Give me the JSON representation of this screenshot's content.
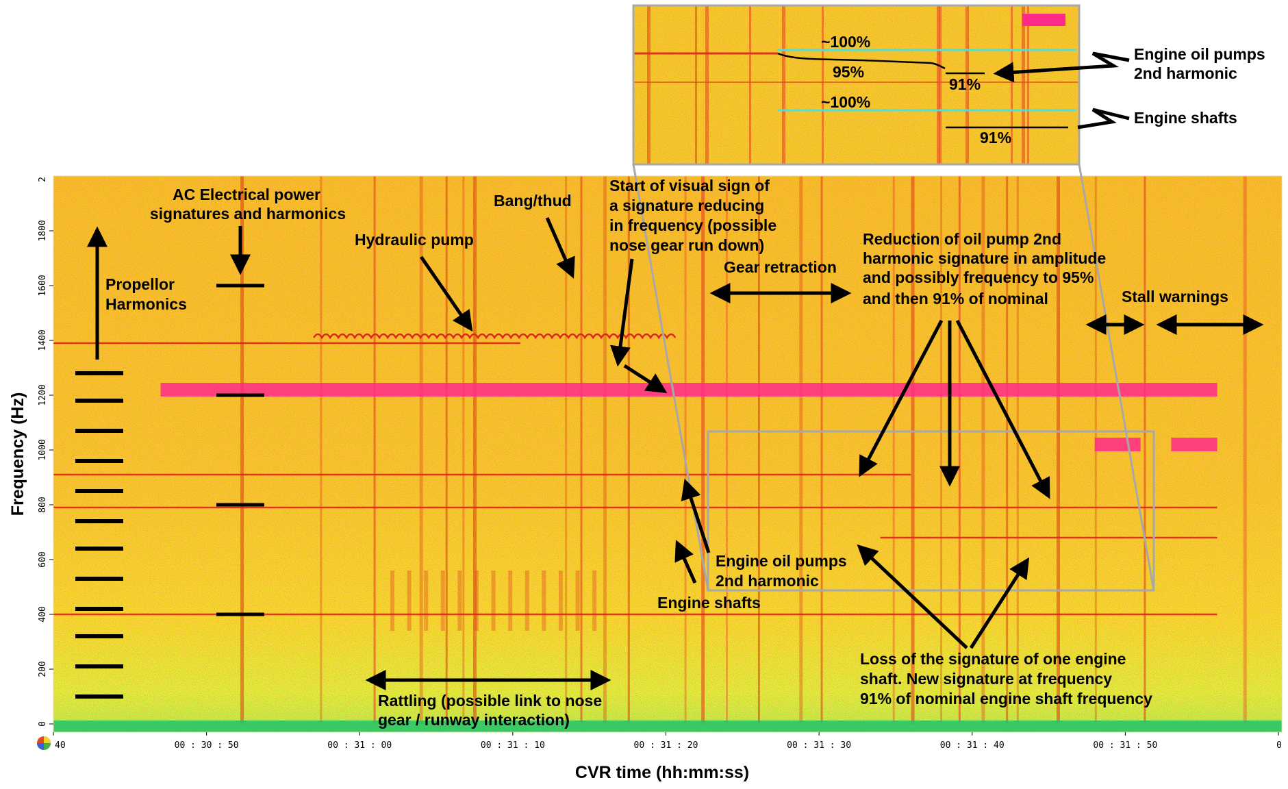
{
  "chart_data": {
    "type": "heatmap",
    "title": "",
    "xlabel": "CVR time (hh:mm:ss)",
    "ylabel": "Frequency (Hz)",
    "x_tick_labels": [
      "40",
      "00 : 30 : 50",
      "00 : 31 : 00",
      "00 : 31 : 10",
      "00 : 31 : 20",
      "00 : 31 : 30",
      "00 : 31 : 40",
      "00 : 31 : 50",
      "0"
    ],
    "x_tick_seconds": [
      1840,
      1850,
      1860,
      1870,
      1880,
      1890,
      1900,
      1910,
      1920
    ],
    "xlim": [
      1840,
      1917
    ],
    "y_ticks": [
      0,
      200,
      400,
      600,
      800,
      1000,
      1200,
      1400,
      1600,
      1800
    ],
    "y_top_label": "2",
    "ylim": [
      0,
      2000
    ],
    "colors": {
      "background": "#f5d327",
      "band": "#e8451f",
      "strong": "#ff2a8a",
      "low": "#a8e23a",
      "floor": "#25c96b",
      "outline": "#a8a8a8",
      "cyan": "#4fe0d8"
    },
    "signature_lines": [
      {
        "label_ref": "hydraulic",
        "y": 1390,
        "x": [
          1840,
          1870.5
        ]
      },
      {
        "label_ref": "hydraulic-ripple",
        "y": 1410,
        "x": [
          1857,
          1880.5
        ]
      },
      {
        "label_ref": "strong-band",
        "y": 1220,
        "x": [
          1847,
          1916
        ],
        "strong": true
      },
      {
        "label_ref": "oil-pump-2nd",
        "y": 910,
        "x": [
          1840,
          1896
        ]
      },
      {
        "label_ref": "engine-shafts",
        "y": 790,
        "x": [
          1840,
          1916
        ]
      },
      {
        "label_ref": "shaft-91",
        "y": 680,
        "x": [
          1894,
          1916
        ]
      },
      {
        "label_ref": "ac-400",
        "y": 400,
        "x": [
          1840,
          1916
        ]
      },
      {
        "label_ref": "stall-1",
        "y": 1020,
        "x": [
          1908,
          1911
        ],
        "strong": true
      },
      {
        "label_ref": "stall-2",
        "y": 1020,
        "x": [
          1913,
          1916
        ],
        "strong": true
      }
    ],
    "propeller_harmonics_hz": [
      100,
      210,
      320,
      420,
      530,
      640,
      740,
      850,
      960,
      1070,
      1180,
      1280
    ],
    "ac_power_harmonics_hz": [
      400,
      800,
      1200,
      1600
    ],
    "annotations": [
      "AC Electrical power signatures and harmonics",
      "Propellor Harmonics",
      "Hydraulic pump",
      "Bang/thud",
      "Start of visual sign of a signature reducing in frequency (possible nose gear run down)",
      "Gear retraction",
      "Reduction of oil pump 2nd harmonic signature in amplitude and possibly frequency to 95% and then 91% of nominal",
      "Stall warnings",
      "Engine oil pumps 2nd harmonic",
      "Engine shafts",
      "Loss of the signature of one engine shaft.  New signature at frequency 91% of nominal engine shaft frequency",
      "Rattling (possible link to nose gear / runway interaction)"
    ],
    "inset": {
      "labels": [
        "~100%",
        "95%",
        "91%",
        "~100%",
        "91%"
      ],
      "callouts": [
        "Engine oil pumps 2nd harmonic",
        "Engine shafts"
      ]
    }
  },
  "text": {
    "ac_power": [
      "AC Electrical power",
      "signatures and harmonics"
    ],
    "propellor": [
      "Propellor",
      "Harmonics"
    ],
    "hydraulic": "Hydraulic pump",
    "bang": "Bang/thud",
    "start_sign": [
      "Start of visual sign of",
      "a signature reducing",
      "in frequency (possible",
      "nose gear run down)"
    ],
    "gear": "Gear retraction",
    "reduction": [
      "Reduction of oil pump 2nd",
      "harmonic signature in amplitude",
      "and possibly frequency to 95%",
      "and then 91% of nominal"
    ],
    "stall": "Stall warnings",
    "oil_pumps": [
      "Engine oil pumps",
      "2nd harmonic"
    ],
    "shafts": "Engine shafts",
    "loss": [
      "Loss of the signature of one engine",
      "shaft.  New signature at frequency",
      "91% of nominal engine shaft frequency"
    ],
    "rattling": [
      "Rattling (possible link to nose",
      "gear / runway interaction)"
    ],
    "inset_100a": "~100%",
    "inset_95": "95%",
    "inset_91a": "91%",
    "inset_100b": "~100%",
    "inset_91b": "91%",
    "inset_oil": [
      "Engine oil pumps",
      "2nd harmonic"
    ],
    "inset_shafts": "Engine shafts"
  }
}
